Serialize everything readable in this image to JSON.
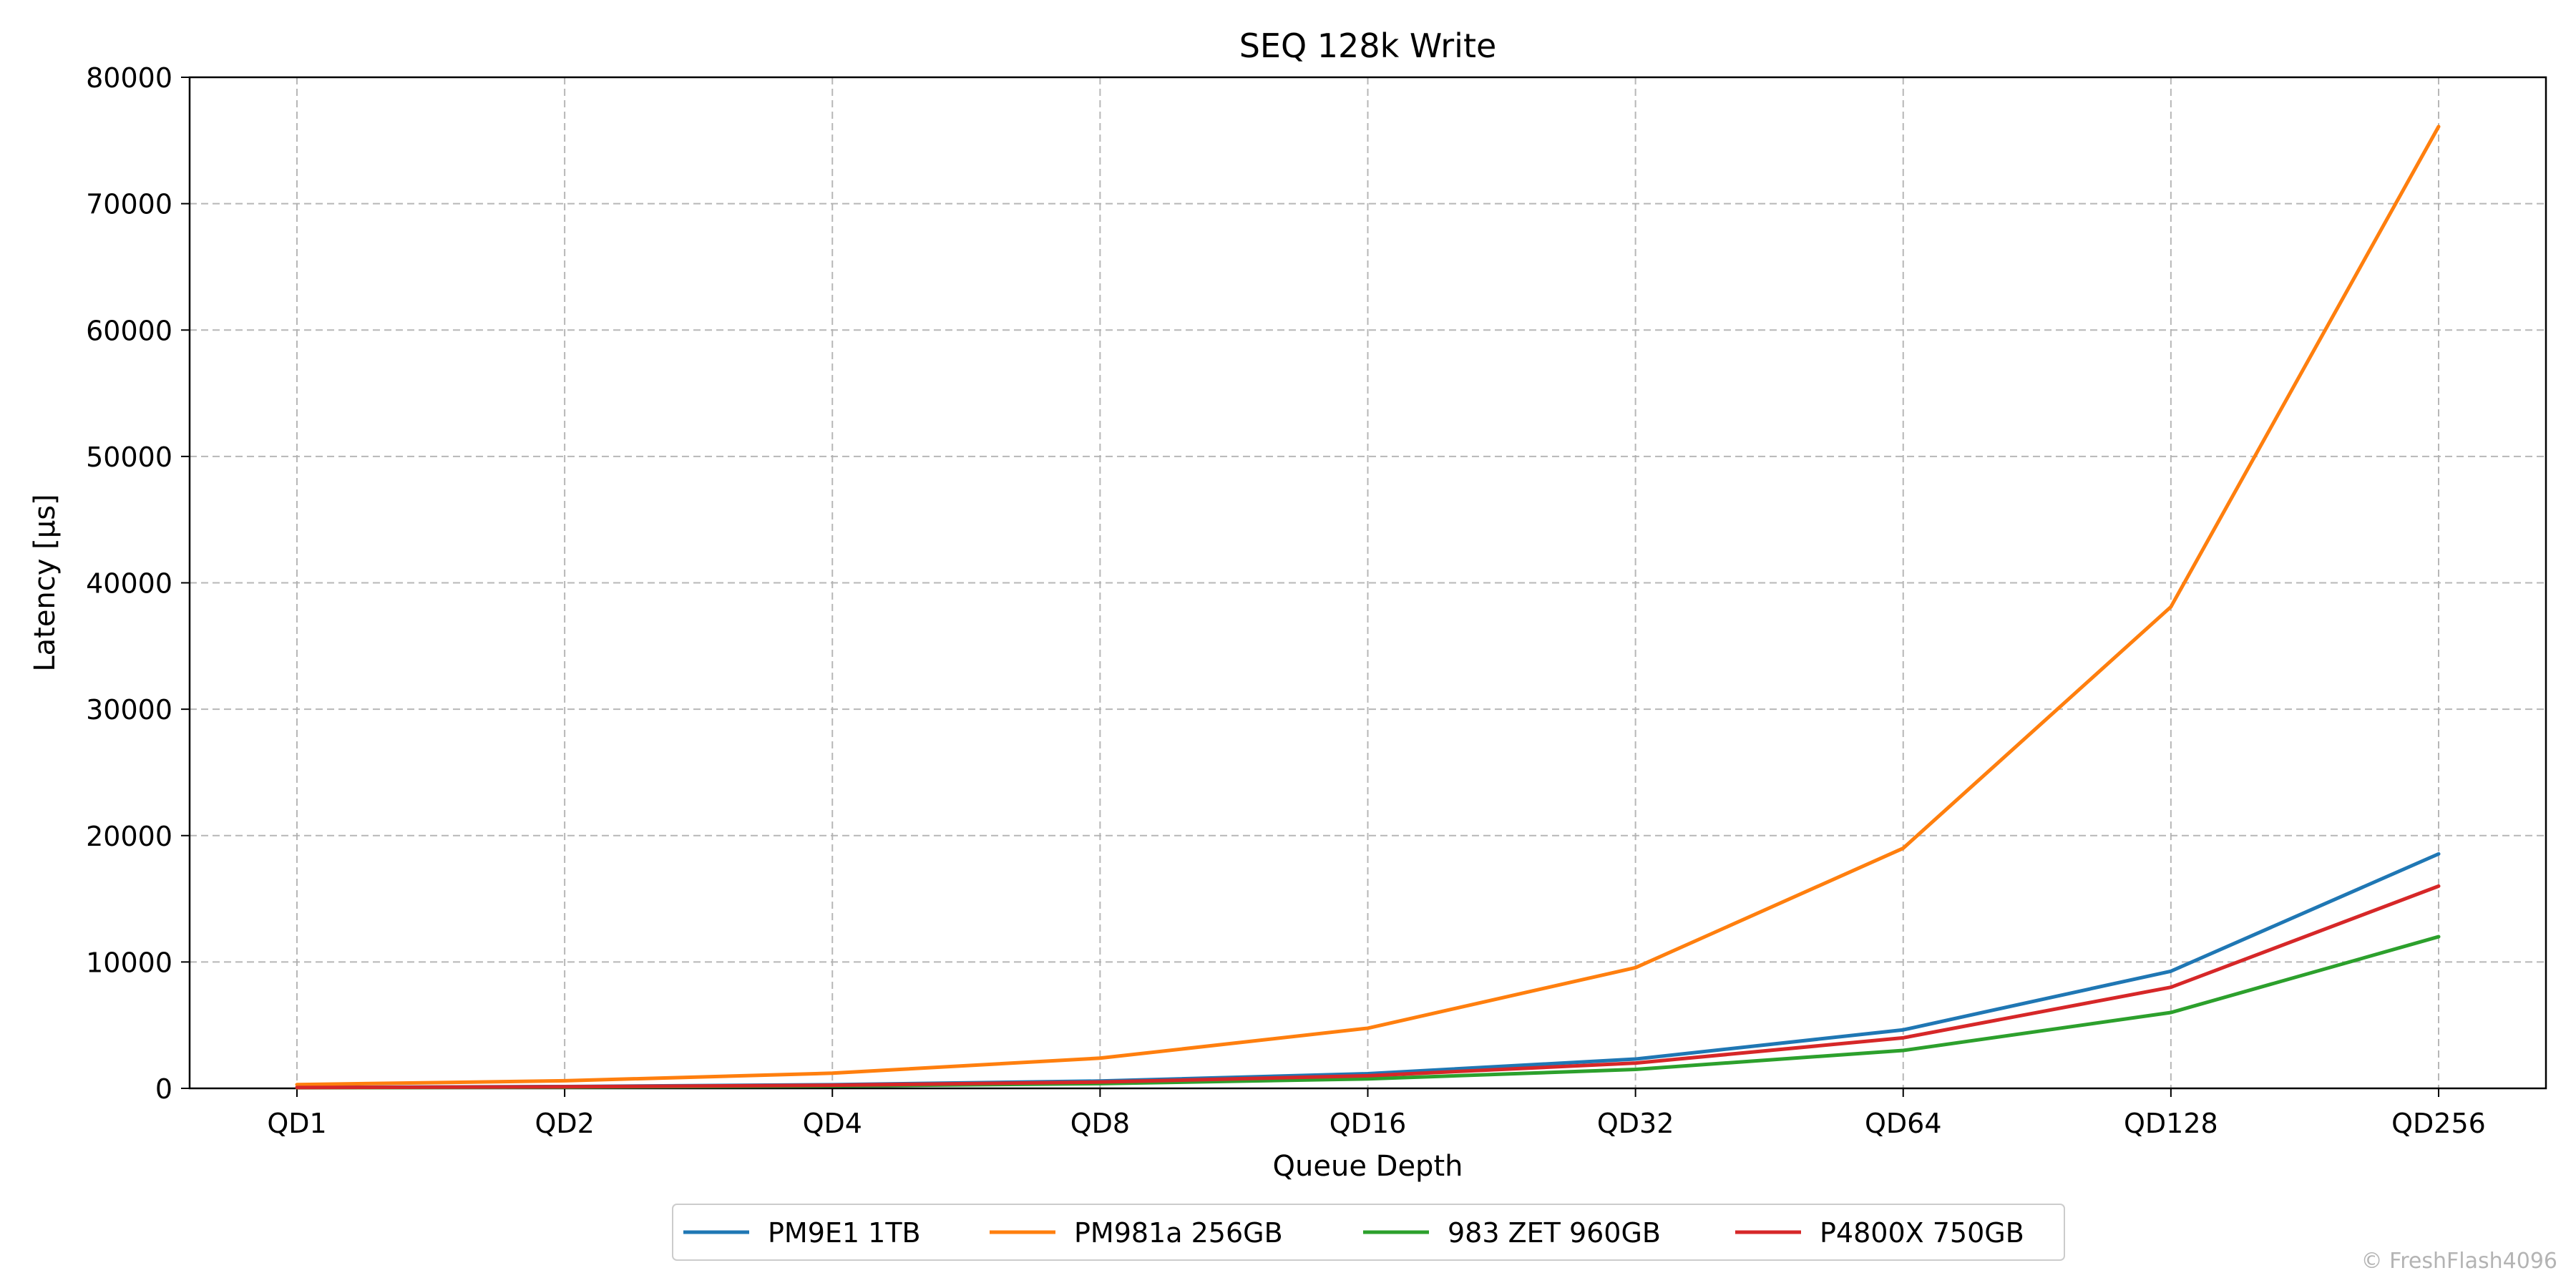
{
  "chart_data": {
    "type": "line",
    "title": "SEQ 128k Write",
    "xlabel": "Queue Depth",
    "ylabel": "Latency [µs]",
    "categories": [
      "QD1",
      "QD2",
      "QD4",
      "QD8",
      "QD16",
      "QD32",
      "QD64",
      "QD128",
      "QD256"
    ],
    "ylim": [
      0,
      80000
    ],
    "yticks": [
      0,
      10000,
      20000,
      30000,
      40000,
      50000,
      60000,
      70000,
      80000
    ],
    "grid": true,
    "legend_position": "bottom-center",
    "series": [
      {
        "name": "PM9E1 1TB",
        "color": "#1f77b4",
        "values": [
          75,
          145,
          290,
          580,
          1160,
          2320,
          4630,
          9270,
          18550
        ]
      },
      {
        "name": "PM981a 256GB",
        "color": "#ff7f0e",
        "values": [
          300,
          600,
          1200,
          2390,
          4760,
          9550,
          19000,
          38100,
          76100
        ]
      },
      {
        "name": "983 ZET 960GB",
        "color": "#2ca02c",
        "values": [
          47,
          94,
          190,
          375,
          750,
          1500,
          3000,
          6000,
          12000
        ]
      },
      {
        "name": "P4800X 750GB",
        "color": "#d62728",
        "values": [
          63,
          125,
          250,
          500,
          1000,
          2000,
          4000,
          8000,
          16000
        ]
      }
    ]
  },
  "watermark": "© FreshFlash4096"
}
